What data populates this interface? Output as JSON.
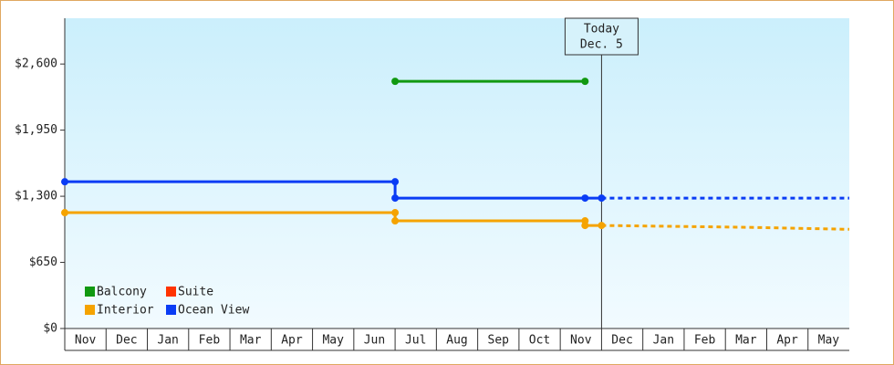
{
  "chart_data": {
    "type": "line",
    "categories": [
      "Nov",
      "Dec",
      "Jan",
      "Feb",
      "Mar",
      "Apr",
      "May",
      "Jun",
      "Jul",
      "Aug",
      "Sep",
      "Oct",
      "Nov",
      "Dec",
      "Jan",
      "Feb",
      "Mar",
      "Apr",
      "May"
    ],
    "xlim": [
      0,
      19
    ],
    "ylim": [
      0,
      3050
    ],
    "yticks": [
      {
        "value": 0,
        "label": "$0"
      },
      {
        "value": 650,
        "label": "$650"
      },
      {
        "value": 1300,
        "label": "$1,300"
      },
      {
        "value": 1950,
        "label": "$1,950"
      },
      {
        "value": 2600,
        "label": "$2,600"
      }
    ],
    "annotation": {
      "x": 13,
      "lines": [
        "Today",
        "Dec. 5"
      ]
    },
    "series": [
      {
        "name": "Balcony",
        "color": "#119911",
        "x": [
          8,
          12.6
        ],
        "values": [
          2430,
          2430
        ]
      },
      {
        "name": "Suite",
        "color": "#ff3300",
        "x": [],
        "values": []
      },
      {
        "name": "Interior",
        "color": "#f5a300",
        "x": [
          0,
          8,
          8,
          12.6,
          12.6,
          13
        ],
        "values": [
          1139,
          1139,
          1058,
          1058,
          1013,
          1013
        ],
        "forecast": {
          "x": [
            13,
            16.5,
            19
          ],
          "values": [
            1013,
            995,
            975
          ]
        }
      },
      {
        "name": "Ocean View",
        "color": "#0a3cf5",
        "x": [
          0,
          8,
          8,
          12.6,
          13
        ],
        "values": [
          1443,
          1443,
          1282,
          1282,
          1282
        ],
        "forecast": {
          "x": [
            13,
            19
          ],
          "values": [
            1282,
            1282
          ]
        }
      }
    ]
  }
}
